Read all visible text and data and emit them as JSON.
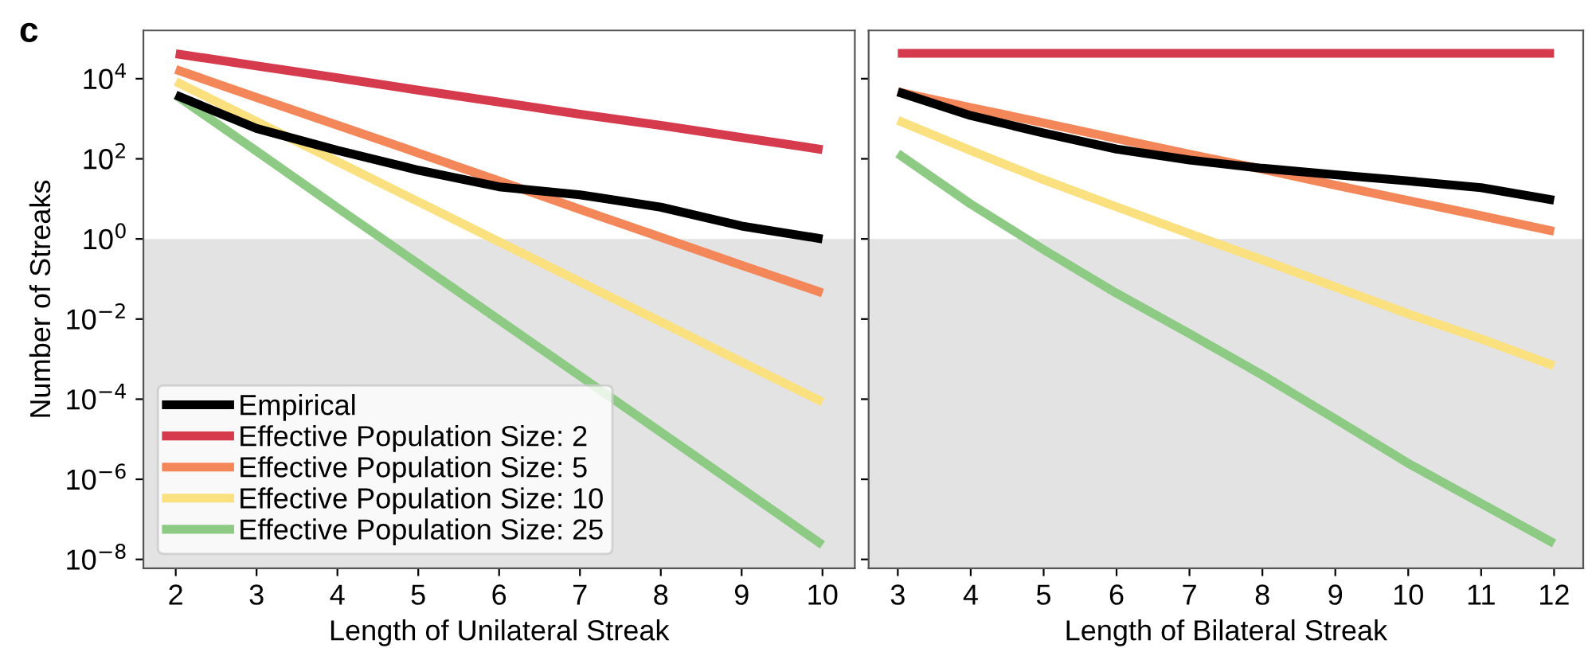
{
  "chart_data": [
    {
      "type": "line",
      "annotations": [
        "c"
      ],
      "xlabel": "Length of Unilateral Streak",
      "ylabel": "Number of Streaks",
      "log": "y",
      "grid": false,
      "legend": "bottom left",
      "line_style": "solid",
      "marker": "none",
      "x": [
        2,
        3,
        4,
        5,
        6,
        7,
        8,
        9,
        10
      ],
      "xlim": [
        1.6,
        10.4
      ],
      "xticks": [
        2,
        3,
        4,
        5,
        6,
        7,
        8,
        9,
        10
      ],
      "ylim": [
        6e-09,
        160000.0
      ],
      "yticks": [
        {
          "value": 1e-08,
          "label": "10$^{−8}$"
        },
        {
          "value": 1e-06,
          "label": "10$^{−6}$"
        },
        {
          "value": 0.0001,
          "label": "10$^{−4}$"
        },
        {
          "value": 0.01,
          "label": "10$^{−2}$"
        },
        {
          "value": 1,
          "label": "10$^{0}$"
        },
        {
          "value": 100,
          "label": "10$^{2}$"
        },
        {
          "value": 10000,
          "label": "10$^{4}$"
        }
      ],
      "bands": [
        {
          "axis": "y",
          "from": 6e-09,
          "to": 1,
          "color": "#e3e3e3"
        }
      ],
      "series": [
        {
          "name": "Empirical",
          "color": "#000000",
          "values": [
            3900,
            575,
            162,
            52,
            20,
            12.6,
            6.2,
            2.1,
            1.0
          ]
        },
        {
          "name": "Effective Population Size: 2",
          "color": "#d63a4d",
          "values": [
            42000,
            21000,
            10500,
            5200,
            2600,
            1300,
            680,
            340,
            170
          ]
        },
        {
          "name": "Effective Population Size: 5",
          "color": "#f4875a",
          "values": [
            17000,
            3400,
            690,
            140,
            28,
            5.5,
            1.1,
            0.22,
            0.045
          ]
        },
        {
          "name": "Effective Population Size: 10",
          "color": "#fbe080",
          "values": [
            8500,
            850,
            85,
            8.5,
            0.85,
            0.085,
            0.0085,
            0.00085,
            8.5e-05
          ]
        },
        {
          "name": "Effective Population Size: 25",
          "color": "#8dcb85",
          "values": [
            3900,
            155,
            6.0,
            0.24,
            0.0095,
            0.00038,
            1.5e-05,
            5.9e-07,
            2.3e-08
          ]
        }
      ]
    },
    {
      "type": "line",
      "xlabel": "Length of Bilateral Streak",
      "log": "y",
      "grid": false,
      "line_style": "solid",
      "marker": "none",
      "tick_labels": "x",
      "x": [
        3,
        4,
        5,
        6,
        7,
        8,
        9,
        10,
        11,
        12
      ],
      "xlim": [
        2.6,
        12.4
      ],
      "xticks": [
        3,
        4,
        5,
        6,
        7,
        8,
        9,
        10,
        11,
        12
      ],
      "ylim": [
        6e-09,
        160000.0
      ],
      "yticks": [
        1e-08,
        1e-06,
        0.0001,
        0.01,
        1,
        100,
        10000
      ],
      "bands": [
        {
          "axis": "y",
          "from": 6e-09,
          "to": 1,
          "color": "#e3e3e3"
        }
      ],
      "series": [
        {
          "color": "#000000",
          "values": [
            4700,
            1200,
            440,
            175,
            93,
            58,
            40,
            28,
            19,
            9.3
          ]
        },
        {
          "color": "#d63a4d",
          "values": [
            43000,
            43000,
            43000,
            43000,
            43000,
            43000,
            43000,
            43000,
            43000,
            43000
          ]
        },
        {
          "color": "#f4875a",
          "values": [
            4700,
            1900,
            790,
            320,
            130,
            55,
            22,
            9.1,
            3.8,
            1.55
          ]
        },
        {
          "color": "#fbe080",
          "values": [
            910,
            160,
            30,
            6.3,
            1.35,
            0.3,
            0.063,
            0.0135,
            0.0032,
            0.00068
          ]
        },
        {
          "color": "#8dcb85",
          "values": [
            135,
            7.4,
            0.54,
            0.044,
            0.0043,
            0.0004,
            3.2e-05,
            2.5e-06,
            2.5e-07,
            2.5e-08
          ]
        }
      ]
    }
  ]
}
